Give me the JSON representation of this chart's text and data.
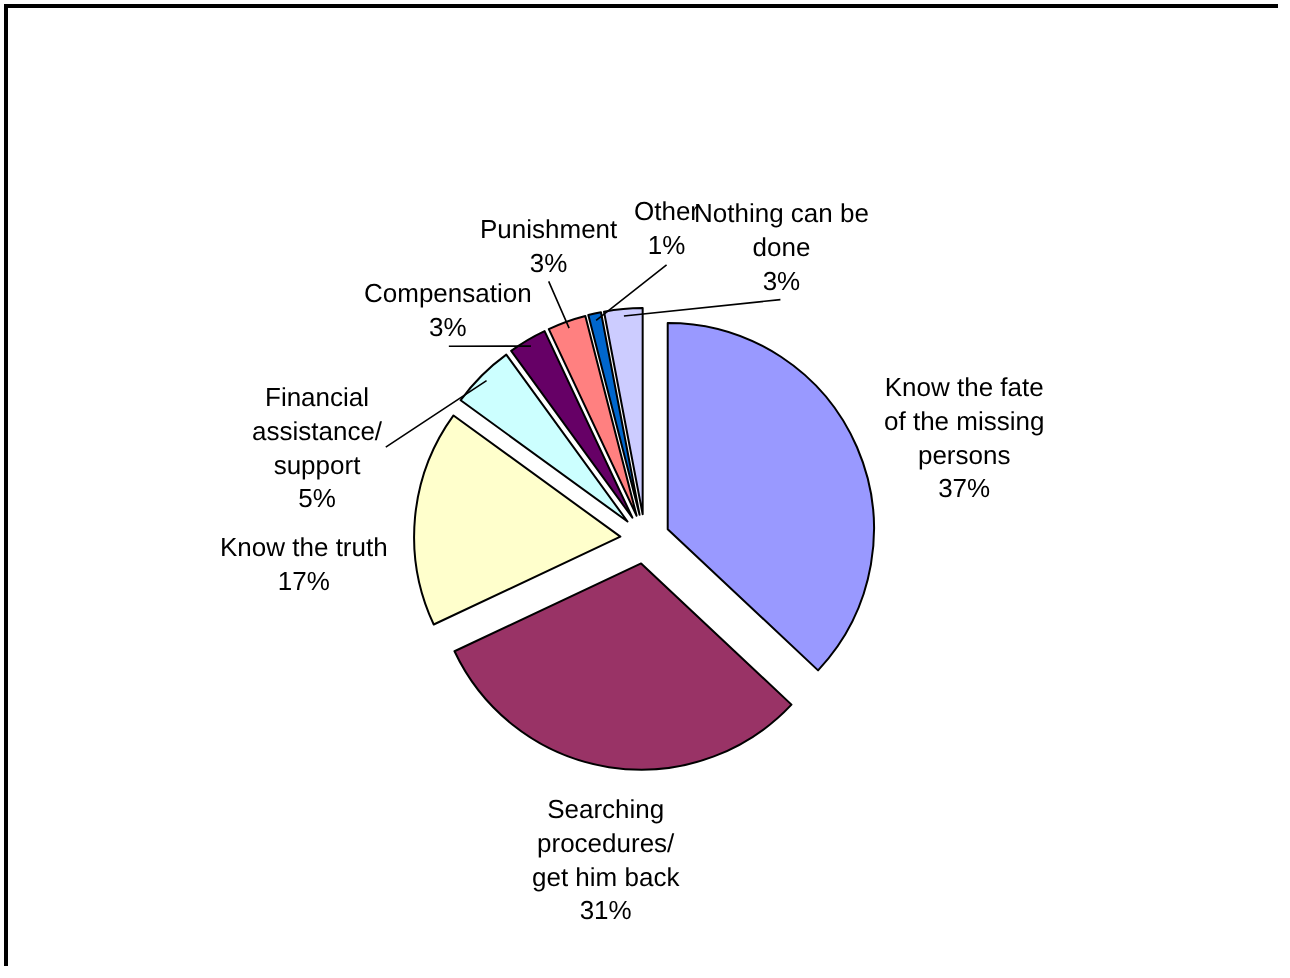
{
  "chart_data": {
    "type": "pie",
    "categories": [
      "Know the fate of the missing persons",
      "Searching procedures/ get him back",
      "Know the truth",
      "Financial assistance/ support",
      "Compensation",
      "Punishment",
      "Other",
      "Nothing can be done"
    ],
    "values": [
      37,
      31,
      17,
      5,
      3,
      3,
      1,
      3
    ],
    "value_labels": [
      "37%",
      "31%",
      "17%",
      "5%",
      "3%",
      "3%",
      "1%",
      "3%"
    ],
    "colors": [
      "#9999ff",
      "#993366",
      "#ffffcc",
      "#ccffff",
      "#660066",
      "#ff8080",
      "#0066cc",
      "#ccccff"
    ],
    "legend": false
  }
}
